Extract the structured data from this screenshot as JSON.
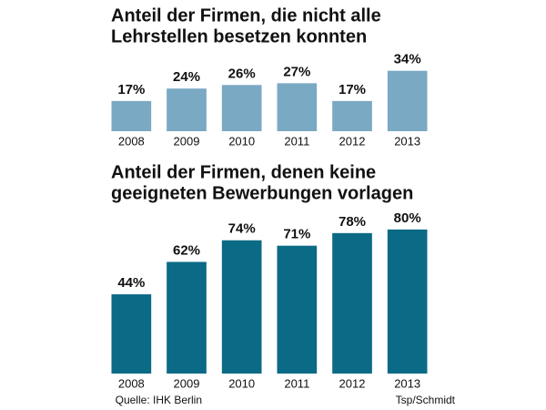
{
  "chart_data": [
    {
      "type": "bar",
      "title": [
        "Anteil der Firmen, die nicht alle",
        "Lehrstellen besetzen konnten"
      ],
      "categories": [
        "2008",
        "2009",
        "2010",
        "2011",
        "2012",
        "2013"
      ],
      "values": [
        17,
        24,
        26,
        27,
        17,
        34
      ],
      "value_labels": [
        "17%",
        "24%",
        "26%",
        "27%",
        "17%",
        "34%"
      ],
      "color": "#7aa9c3",
      "ylim": [
        0,
        40
      ]
    },
    {
      "type": "bar",
      "title": [
        "Anteil der Firmen, denen keine",
        "geeigneten Bewerbungen vorlagen"
      ],
      "categories": [
        "2008",
        "2009",
        "2010",
        "2011",
        "2012",
        "2013"
      ],
      "values": [
        44,
        62,
        74,
        71,
        78,
        80
      ],
      "value_labels": [
        "44%",
        "62%",
        "74%",
        "71%",
        "78%",
        "80%"
      ],
      "color": "#0b6a86",
      "ylim": [
        0,
        85
      ]
    }
  ],
  "footer": {
    "source": "Quelle: IHK Berlin",
    "credit": "Tsp/Schmidt"
  }
}
